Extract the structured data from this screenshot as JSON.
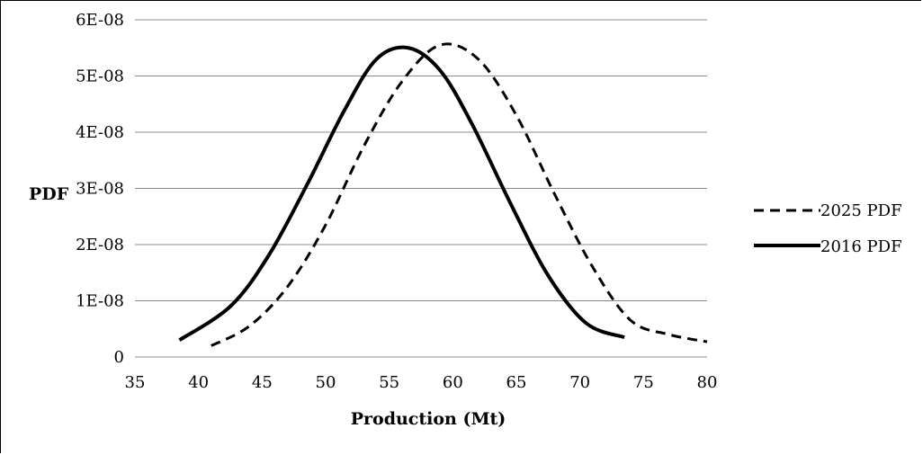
{
  "chart_data": {
    "type": "line",
    "title": "",
    "xlabel": "Production (Mt)",
    "ylabel": "PDF",
    "xlim": [
      35,
      80
    ],
    "ylim": [
      0,
      6e-08
    ],
    "x_ticks": [
      "35",
      "40",
      "45",
      "50",
      "55",
      "60",
      "65",
      "70",
      "75",
      "80"
    ],
    "y_ticks": [
      "0",
      "1E-08",
      "2E-08",
      "3E-08",
      "4E-08",
      "5E-08",
      "6E-08"
    ],
    "grid": "horizontal",
    "legend_position": "right",
    "series": [
      {
        "name": "2025 PDF",
        "style": "dashed",
        "color": "#000000",
        "x": [
          41,
          44,
          47,
          50,
          53,
          56,
          59,
          62,
          65,
          68,
          71,
          74,
          77,
          80
        ],
        "y": [
          2e-09,
          5.5e-09,
          1.25e-08,
          2.35e-08,
          3.75e-08,
          4.9e-08,
          5.55e-08,
          5.3e-08,
          4.3e-08,
          2.9e-08,
          1.6e-08,
          6.5e-09,
          4e-09,
          2.7e-09
        ]
      },
      {
        "name": "2016 PDF",
        "style": "solid",
        "color": "#000000",
        "x": [
          38.5,
          42.5,
          45.5,
          48.5,
          51.5,
          54,
          56.5,
          59,
          61.5,
          64.5,
          67.5,
          70.5,
          73.5
        ],
        "y": [
          3e-09,
          9e-09,
          1.8e-08,
          3.05e-08,
          4.4e-08,
          5.3e-08,
          5.5e-08,
          5.1e-08,
          4.15e-08,
          2.75e-08,
          1.45e-08,
          6e-09,
          3.5e-09
        ]
      }
    ]
  }
}
